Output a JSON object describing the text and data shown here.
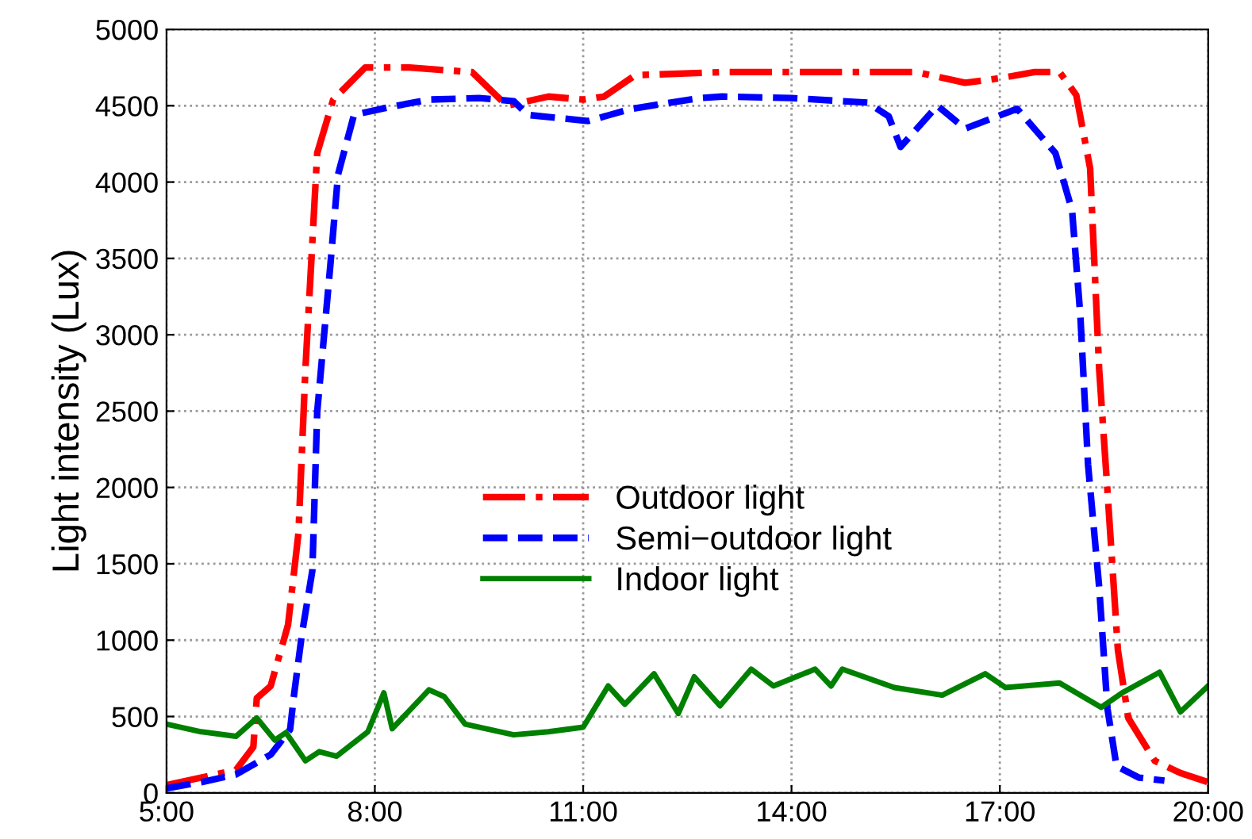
{
  "chart_data": {
    "type": "line",
    "xlabel": null,
    "ylabel": "Light intensity (Lux)",
    "xlim": [
      5,
      20
    ],
    "xticks": [
      {
        "value": 5,
        "label": "5:00"
      },
      {
        "value": 8,
        "label": "8:00"
      },
      {
        "value": 11,
        "label": "11:00"
      },
      {
        "value": 14,
        "label": "14:00"
      },
      {
        "value": 17,
        "label": "17:00"
      },
      {
        "value": 20,
        "label": "20:00"
      }
    ],
    "ylim": [
      0,
      5000
    ],
    "yticks": [
      0,
      500,
      1000,
      1500,
      2000,
      2500,
      3000,
      3500,
      4000,
      4500,
      5000
    ],
    "grid": true,
    "legend": "center",
    "marker": "none",
    "series": [
      {
        "name": "Outdoor light",
        "color": "#ff0000",
        "line_style": "dashdot",
        "x": [
          5,
          5.5,
          6,
          6.25,
          6.3,
          6.5,
          6.75,
          6.9,
          7.0,
          7.17,
          7.4,
          7.86,
          8.5,
          9.4,
          9.9,
          10.5,
          11.0,
          11.3,
          11.75,
          13,
          14,
          15,
          15.8,
          16.5,
          17.0,
          17.5,
          17.86,
          18.1,
          18.3,
          18.43,
          18.55,
          18.7,
          18.85,
          19.23,
          19.6,
          20
        ],
        "values": [
          50,
          100,
          150,
          300,
          620,
          700,
          1100,
          1700,
          2775,
          4190,
          4540,
          4750,
          4750,
          4720,
          4500,
          4560,
          4540,
          4560,
          4700,
          4720,
          4720,
          4720,
          4720,
          4650,
          4680,
          4720,
          4720,
          4570,
          4090,
          2775,
          1975,
          935,
          490,
          210,
          130,
          70
        ]
      },
      {
        "name": "Semi−outdoor light",
        "color": "#0000ff",
        "line_style": "dashed",
        "x": [
          5,
          5.5,
          6,
          6.5,
          6.78,
          6.83,
          6.95,
          7.1,
          7.17,
          7.36,
          7.47,
          7.7,
          8.2,
          8.78,
          9.5,
          10.0,
          10.2,
          11.07,
          11.7,
          12.67,
          13,
          14,
          15.1,
          15.4,
          15.57,
          16.1,
          16.5,
          17.25,
          17.8,
          18.04,
          18.16,
          18.27,
          18.43,
          18.55,
          18.68,
          19.0,
          19.37
        ],
        "values": [
          30,
          70,
          120,
          250,
          415,
          620,
          1040,
          1455,
          2495,
          3460,
          4050,
          4440,
          4490,
          4540,
          4550,
          4530,
          4440,
          4400,
          4480,
          4550,
          4560,
          4550,
          4520,
          4430,
          4230,
          4500,
          4350,
          4480,
          4190,
          3815,
          3120,
          2150,
          1350,
          550,
          175,
          100,
          80
        ]
      },
      {
        "name": "Indoor light",
        "color": "#008000",
        "line_style": "solid",
        "x": [
          5,
          5.5,
          6,
          6.3,
          6.56,
          6.72,
          7.0,
          7.2,
          7.45,
          7.9,
          8.13,
          8.25,
          8.78,
          9.0,
          9.3,
          10.0,
          10.5,
          11.0,
          11.36,
          11.6,
          12.02,
          12.37,
          12.6,
          12.97,
          13.42,
          13.74,
          14.34,
          14.57,
          14.73,
          15.48,
          16.17,
          16.79,
          17.08,
          17.86,
          18.46,
          18.78,
          19.3,
          19.6,
          20
        ],
        "values": [
          450,
          400,
          370,
          490,
          345,
          395,
          210,
          270,
          240,
          400,
          655,
          420,
          675,
          630,
          450,
          380,
          400,
          430,
          700,
          580,
          780,
          520,
          760,
          570,
          810,
          700,
          810,
          700,
          810,
          690,
          640,
          780,
          690,
          720,
          560,
          660,
          790,
          530,
          700
        ]
      }
    ]
  }
}
